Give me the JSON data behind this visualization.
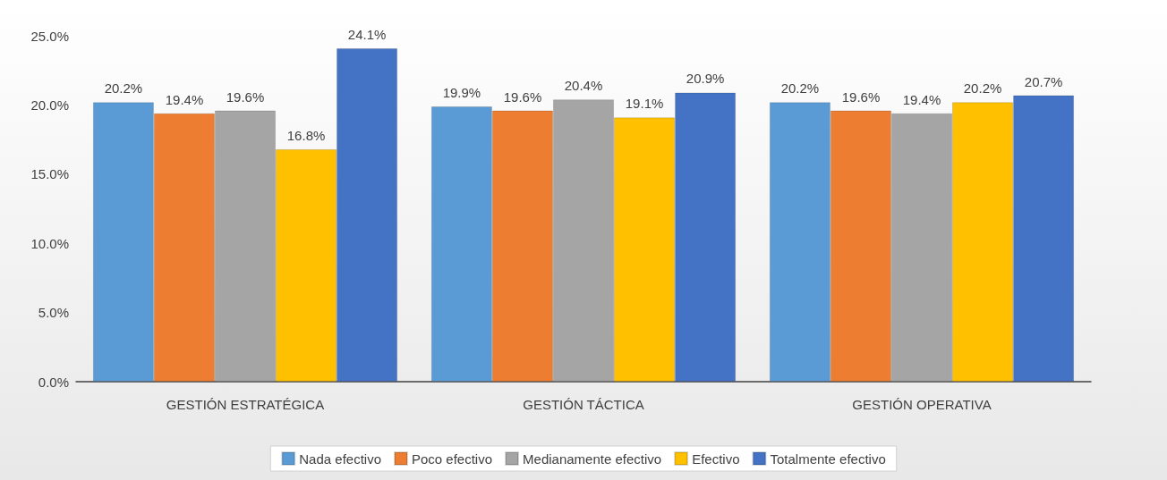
{
  "chart_data": {
    "type": "bar",
    "categories": [
      "GESTIÓN ESTRATÉGICA",
      "GESTIÓN TÁCTICA",
      "GESTIÓN OPERATIVA"
    ],
    "series": [
      {
        "name": "Nada efectivo",
        "color": "#5b9bd5",
        "values": [
          20.2,
          19.9,
          20.2
        ],
        "value_labels": [
          "20.2%",
          "19.9%",
          "20.2%"
        ]
      },
      {
        "name": "Poco efectivo",
        "color": "#ed7d31",
        "values": [
          19.4,
          19.6,
          19.6
        ],
        "value_labels": [
          "19.4%",
          "19.6%",
          "19.6%"
        ]
      },
      {
        "name": "Medianamente efectivo",
        "color": "#a5a5a5",
        "values": [
          19.6,
          20.4,
          19.4
        ],
        "value_labels": [
          "19.6%",
          "20.4%",
          "19.4%"
        ]
      },
      {
        "name": "Efectivo",
        "color": "#ffc000",
        "values": [
          16.8,
          19.1,
          20.2
        ],
        "value_labels": [
          "16.8%",
          "19.1%",
          "20.2%"
        ]
      },
      {
        "name": "Totalmente efectivo",
        "color": "#4472c4",
        "values": [
          24.1,
          20.9,
          20.7
        ],
        "value_labels": [
          "24.1%",
          "20.9%",
          "20.7%"
        ]
      }
    ],
    "ylim": [
      0,
      25
    ],
    "yticks": [
      {
        "value": 0,
        "label": "0.0%"
      },
      {
        "value": 5,
        "label": "5.0%"
      },
      {
        "value": 10,
        "label": "10.0%"
      },
      {
        "value": 15,
        "label": "15.0%"
      },
      {
        "value": 20,
        "label": "20.0%"
      },
      {
        "value": 25,
        "label": "25.0%"
      }
    ],
    "grid": false,
    "legend": "bottom"
  }
}
